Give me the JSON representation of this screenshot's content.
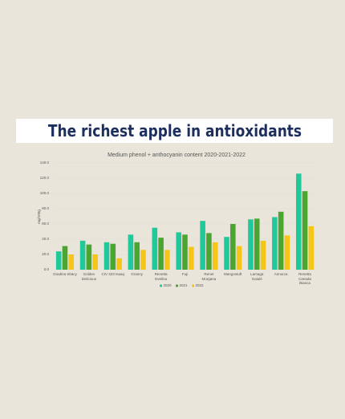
{
  "chart_data": {
    "type": "bar",
    "title": "The richest apple in antioxidants",
    "subtitle": "Medium phenol + anthocyanin content 2020-2021-2022",
    "y_label": "mg/100g",
    "categories": [
      "Gradina Sbäcy",
      "Golden Delicious",
      "CIV 323 Isaaq",
      "Granny",
      "Renetta Evelina",
      "Fuji",
      "Renet Morgana",
      "Mangostuft",
      "Lamaga Gaiulé",
      "Annurca",
      "Renetta Canada Bianca"
    ],
    "series": [
      {
        "name": "2020",
        "color": "#1fc99a",
        "values": [
          24,
          38,
          36,
          46,
          55,
          49,
          64,
          43,
          66,
          69,
          126
        ]
      },
      {
        "name": "2021",
        "color": "#4aa531",
        "values": [
          31,
          33,
          34,
          36,
          42,
          46,
          48,
          60,
          67,
          76,
          103
        ]
      },
      {
        "name": "2022",
        "color": "#f5c518",
        "values": [
          20,
          20,
          15,
          26,
          26,
          30,
          36,
          31,
          38,
          45,
          57
        ]
      }
    ],
    "ylim": [
      0,
      140
    ],
    "yticks": [
      {
        "value": 0,
        "label": "0.0"
      },
      {
        "value": 20,
        "label": "20.0"
      },
      {
        "value": 40,
        "label": "40.0"
      },
      {
        "value": 60,
        "label": "60.0"
      },
      {
        "value": 80,
        "label": "80.0"
      },
      {
        "value": 100,
        "label": "100.0"
      },
      {
        "value": 120,
        "label": "120.0"
      },
      {
        "value": 140,
        "label": "140.0"
      }
    ],
    "grid": true,
    "legend": "bottom"
  }
}
